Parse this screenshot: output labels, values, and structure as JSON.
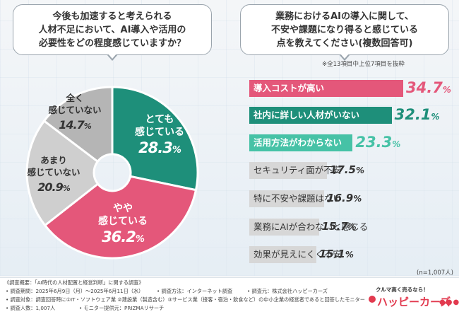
{
  "question_left": {
    "lines": [
      "今後も加速すると考えられる",
      "人材不足において、AI導入や活用の",
      "必要性をどの程度感じていますか？"
    ]
  },
  "question_right": {
    "lines": [
      "業務におけるAIの導入に関して、",
      "不安や課題になり得ると感じている",
      "点を教えてください(複数回答可)"
    ]
  },
  "note": "※全13項目中上位7項目を抜粋",
  "sample_size": "(n=1,007人)",
  "colors": {
    "teal": "#1e8f7a",
    "pink": "#e4577a",
    "light_gray": "#cfcfcf",
    "mid_gray": "#b5b5b5",
    "bar_gray": "#d7d7d7",
    "bar_light_teal": "#46c2a6"
  },
  "chart_data": [
    {
      "type": "pie",
      "title": "今後も加速すると考えられる人材不足において、AI導入や活用の必要性をどの程度感じていますか？",
      "slices": [
        {
          "label": "とても感じている",
          "label_lines": [
            "とても",
            "感じている"
          ],
          "value": 28.3,
          "value_text": "28.3",
          "unit": "%",
          "color": "#1e8f7a"
        },
        {
          "label": "やや感じている",
          "label_lines": [
            "やや",
            "感じている"
          ],
          "value": 36.2,
          "value_text": "36.2",
          "unit": "%",
          "color": "#e4577a"
        },
        {
          "label": "あまり感じていない",
          "label_lines": [
            "あまり",
            "感じていない"
          ],
          "value": 20.9,
          "value_text": "20.9",
          "unit": "%",
          "color": "#cfcfcf"
        },
        {
          "label": "全く感じていない",
          "label_lines": [
            "全く",
            "感じていない"
          ],
          "value": 14.7,
          "value_text": "14.7",
          "unit": "%",
          "color": "#b5b5b5"
        }
      ]
    },
    {
      "type": "bar",
      "orientation": "horizontal",
      "title": "業務におけるAIの導入に関して、不安や課題になり得ると感じている点を教えてください(複数回答可)",
      "categories": [
        "導入コストが高い",
        "社内に詳しい人材がいない",
        "活用方法がわからない",
        "セキュリティ面が不安",
        "特に不安や課題はない",
        "業務にAIが合わないと感じる",
        "効果が見えにくく不安"
      ],
      "values": [
        34.7,
        32.1,
        23.3,
        17.5,
        16.9,
        15.7,
        15.1
      ],
      "value_texts": [
        "34.7",
        "32.1",
        "23.3",
        "17.5",
        "16.9",
        "15.7",
        "15.1"
      ],
      "unit": "%",
      "bar_colors": [
        "#e4577a",
        "#1e8f7a",
        "#46c2a6",
        "#d7d7d7",
        "#d7d7d7",
        "#d7d7d7",
        "#d7d7d7"
      ],
      "value_colors": [
        "#e4577a",
        "#1e8f7a",
        "#46c2a6",
        "#333333",
        "#333333",
        "#333333",
        "#333333"
      ],
      "xlim": [
        0,
        40
      ]
    }
  ],
  "footer": {
    "heading": "《調査概要：「AI時代の人材配置と経営判断」に関する調査》",
    "period": "• 調査期間：2025年6月9日（月）〜2025年6月11日（水）",
    "method": "• 調査方法：インターネット調査",
    "organizer": "• 調査元：株式会社ハッピーカーズ",
    "target": "• 調査対象：調査回答時に①IT・ソフトウェア業 ②建設業（製造含む）③サービス業（接客・宿泊・飲食など）の中小企業の経営者であると回答したモニター",
    "count": "• 調査人数：1,007人",
    "provider": "• モニター提供元：PRIZMAリサーチ"
  },
  "logo": {
    "tagline": "クルマ高く売るなら！",
    "name": "ハッピーカーズ",
    "dots": "●●●"
  }
}
